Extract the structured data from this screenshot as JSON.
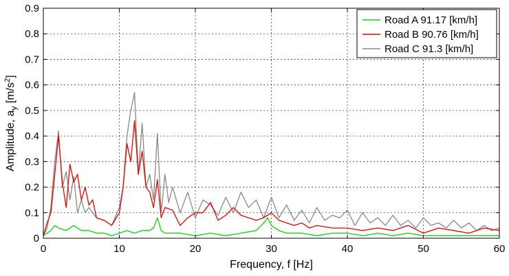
{
  "chart_data": {
    "type": "line",
    "title": "",
    "xlabel": "Frequency, f [Hz]",
    "ylabel_main": "Amplitude, a",
    "ylabel_sub": "y",
    "ylabel_unit_pre": " [m/s",
    "ylabel_unit_sup": "2",
    "ylabel_unit_post": "]",
    "xlim": [
      0,
      60
    ],
    "ylim": [
      0,
      0.9
    ],
    "x_ticks": [
      0,
      10,
      20,
      30,
      40,
      50,
      60
    ],
    "x_tick_labels": [
      "0",
      "10",
      "20",
      "30",
      "40",
      "50",
      "60"
    ],
    "y_ticks": [
      0,
      0.1,
      0.2,
      0.3,
      0.4,
      0.5,
      0.6,
      0.7,
      0.8,
      0.9
    ],
    "y_tick_labels": [
      "0",
      "0.1",
      "0.2",
      "0.3",
      "0.4",
      "0.5",
      "0.6",
      "0.7",
      "0.8",
      "0.9"
    ],
    "grid": true,
    "legend_position": "top-right",
    "series": [
      {
        "name": "Road A 91.17 [km/h]",
        "color": "#00dd00",
        "x": [
          0,
          1,
          1.5,
          2,
          3,
          4,
          5,
          6,
          7,
          8,
          9,
          10,
          11,
          12,
          13,
          14,
          14.5,
          15,
          15.5,
          16,
          17,
          18,
          20,
          22,
          24,
          26,
          28,
          29,
          29.5,
          30,
          31,
          32,
          34,
          36,
          38,
          40,
          42,
          44,
          46,
          48,
          50,
          52,
          54,
          56,
          58,
          60
        ],
        "y": [
          0.01,
          0.03,
          0.05,
          0.04,
          0.03,
          0.05,
          0.03,
          0.03,
          0.02,
          0.02,
          0.01,
          0.02,
          0.03,
          0.02,
          0.03,
          0.03,
          0.04,
          0.08,
          0.03,
          0.02,
          0.02,
          0.02,
          0.01,
          0.02,
          0.01,
          0.02,
          0.03,
          0.06,
          0.08,
          0.05,
          0.03,
          0.02,
          0.02,
          0.01,
          0.02,
          0.02,
          0.01,
          0.02,
          0.01,
          0.02,
          0.01,
          0.01,
          0.01,
          0.01,
          0.01,
          0.01
        ]
      },
      {
        "name": "Road B 90.76 [km/h]",
        "color": "#ee0000",
        "x": [
          0,
          0.5,
          1,
          1.5,
          2,
          2.5,
          3,
          3.5,
          4,
          4.5,
          5,
          5.5,
          6,
          6.5,
          7,
          8,
          9,
          10,
          10.5,
          11,
          11.5,
          12,
          12.5,
          13,
          13.5,
          14,
          14.5,
          15,
          15.5,
          16,
          17,
          18,
          19,
          20,
          21,
          22,
          23,
          24,
          25,
          26,
          27,
          28,
          29,
          30,
          31,
          32,
          33,
          34,
          35,
          36,
          38,
          40,
          42,
          44,
          46,
          48,
          50,
          52,
          54,
          56,
          58,
          60
        ],
        "y": [
          0.01,
          0.06,
          0.1,
          0.25,
          0.4,
          0.22,
          0.12,
          0.29,
          0.22,
          0.25,
          0.15,
          0.2,
          0.13,
          0.15,
          0.08,
          0.07,
          0.05,
          0.1,
          0.2,
          0.37,
          0.3,
          0.46,
          0.25,
          0.34,
          0.2,
          0.18,
          0.12,
          0.23,
          0.08,
          0.12,
          0.11,
          0.05,
          0.08,
          0.1,
          0.1,
          0.14,
          0.07,
          0.09,
          0.12,
          0.09,
          0.08,
          0.07,
          0.08,
          0.1,
          0.07,
          0.06,
          0.05,
          0.06,
          0.04,
          0.05,
          0.04,
          0.04,
          0.03,
          0.04,
          0.03,
          0.05,
          0.02,
          0.04,
          0.03,
          0.02,
          0.04,
          0.03
        ]
      },
      {
        "name": "Road C 91.3 [km/h]",
        "color": "#888888",
        "x": [
          0,
          0.5,
          1,
          1.5,
          2,
          2.5,
          3,
          3.5,
          4,
          4.5,
          5,
          5.5,
          6,
          7,
          8,
          9,
          10,
          10.5,
          11,
          11.5,
          12,
          12.5,
          13,
          13.5,
          14,
          14.5,
          15,
          15.5,
          16,
          16.5,
          17,
          18,
          19,
          20,
          21,
          22,
          23,
          24,
          25,
          26,
          27,
          28,
          29,
          30,
          31,
          32,
          33,
          34,
          35,
          36,
          37,
          38,
          39,
          40,
          41,
          42,
          43,
          44,
          45,
          46,
          47,
          48,
          49,
          50,
          51,
          52,
          53,
          54,
          55,
          56,
          57,
          58,
          59,
          60
        ],
        "y": [
          0.01,
          0.04,
          0.12,
          0.3,
          0.42,
          0.2,
          0.26,
          0.15,
          0.24,
          0.1,
          0.15,
          0.1,
          0.12,
          0.08,
          0.07,
          0.05,
          0.12,
          0.2,
          0.4,
          0.5,
          0.57,
          0.25,
          0.45,
          0.2,
          0.25,
          0.15,
          0.41,
          0.1,
          0.25,
          0.14,
          0.2,
          0.1,
          0.18,
          0.08,
          0.15,
          0.13,
          0.09,
          0.16,
          0.1,
          0.18,
          0.12,
          0.15,
          0.08,
          0.16,
          0.08,
          0.13,
          0.07,
          0.11,
          0.06,
          0.12,
          0.07,
          0.09,
          0.08,
          0.11,
          0.05,
          0.1,
          0.06,
          0.08,
          0.05,
          0.09,
          0.05,
          0.07,
          0.04,
          0.08,
          0.05,
          0.06,
          0.04,
          0.07,
          0.04,
          0.06,
          0.03,
          0.05,
          0.03,
          0.04
        ]
      }
    ]
  }
}
